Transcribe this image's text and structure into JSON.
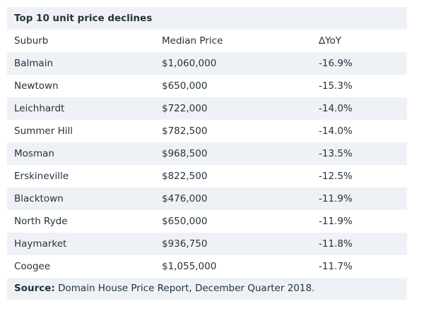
{
  "table": {
    "title": "Top 10 unit price declines",
    "headers": [
      "Suburb",
      "Median Price",
      "∆YoY"
    ],
    "rows": [
      [
        "Balmain",
        "$1,060,000",
        "-16.9%"
      ],
      [
        "Newtown",
        "$650,000",
        "-15.3%"
      ],
      [
        "Leichhardt",
        "$722,000",
        "-14.0%"
      ],
      [
        "Summer Hill",
        "$782,500",
        "-14.0%"
      ],
      [
        "Mosman",
        "$968,500",
        "-13.5%"
      ],
      [
        "Erskineville",
        "$822,500",
        "-12.5%"
      ],
      [
        "Blacktown",
        "$476,000",
        "-11.9%"
      ],
      [
        "North Ryde",
        "$650,000",
        "-11.9%"
      ],
      [
        "Haymarket",
        "$936,750",
        "-11.8%"
      ],
      [
        "Coogee",
        "$1,055,000",
        "-11.7%"
      ]
    ],
    "source_label": "Source:",
    "source_text": "Domain House Price Report, December Quarter 2018."
  }
}
